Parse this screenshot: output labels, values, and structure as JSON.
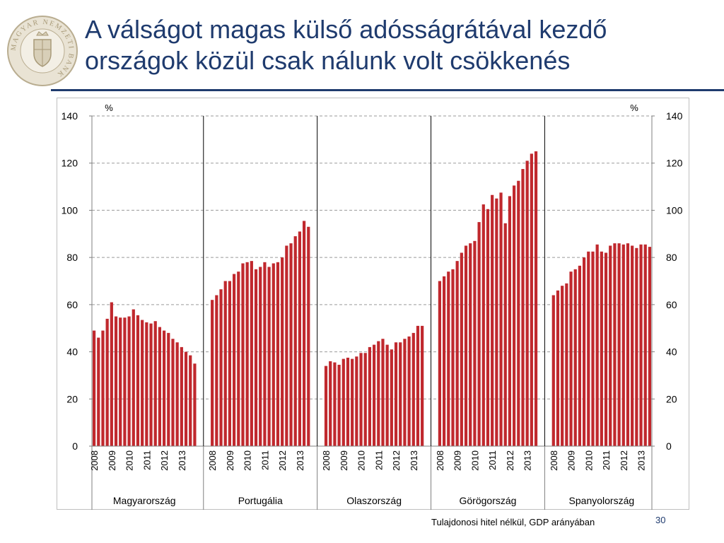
{
  "slide": {
    "title_line1": "A válságot magas külső adósságrátával kezdő",
    "title_line2": "országok közül csak nálunk volt csökkenés",
    "page_number": "30",
    "source_note": "Tulajdonosi hitel nélkül, GDP arányában",
    "logo_text": "MAGYAR NEMZETI BANK",
    "accent_color": "#1f3b6e"
  },
  "chart_data": {
    "type": "bar",
    "title": "",
    "ylabel_left": "%",
    "ylabel_right": "%",
    "ylim": [
      0,
      140
    ],
    "yticks": [
      0,
      20,
      40,
      60,
      80,
      100,
      120,
      140
    ],
    "grid": true,
    "bar_color": "#c0282d",
    "year_labels": [
      "2008",
      "2009",
      "2010",
      "2011",
      "2012",
      "2013"
    ],
    "groups": [
      {
        "name": "Magyarország",
        "values": [
          49,
          46,
          49,
          54,
          61,
          55,
          54.5,
          54.5,
          55,
          58,
          55.5,
          53.5,
          52.5,
          52,
          53,
          50.5,
          49,
          48,
          45.5,
          44,
          42,
          40,
          38.5,
          35
        ]
      },
      {
        "name": "Portugália",
        "values": [
          62,
          64,
          66.5,
          70,
          70,
          73,
          74,
          77.5,
          78,
          78.5,
          75,
          76,
          78,
          76,
          77.5,
          78,
          80,
          85,
          86,
          89,
          91,
          95.5,
          93
        ]
      },
      {
        "name": "Olaszország",
        "values": [
          34,
          36,
          35.5,
          34.5,
          37,
          37.5,
          37,
          38,
          39.5,
          39.5,
          42,
          43,
          44.5,
          45.5,
          43,
          41,
          44,
          44,
          45.5,
          46.5,
          48,
          51,
          51
        ]
      },
      {
        "name": "Görögország",
        "values": [
          70,
          72,
          74,
          75,
          78.5,
          82,
          85,
          86,
          87,
          95,
          102.5,
          100.5,
          106.5,
          105,
          107.5,
          94.5,
          106,
          110.5,
          112.5,
          117.5,
          121,
          124,
          125
        ]
      },
      {
        "name": "Spanyolország",
        "values": [
          64,
          66,
          68,
          69,
          74,
          75,
          76.5,
          80,
          82.5,
          82.5,
          85.5,
          82.5,
          82,
          85,
          86,
          86,
          85.5,
          86,
          85,
          84,
          85.5,
          85.5,
          84.5
        ]
      }
    ]
  }
}
